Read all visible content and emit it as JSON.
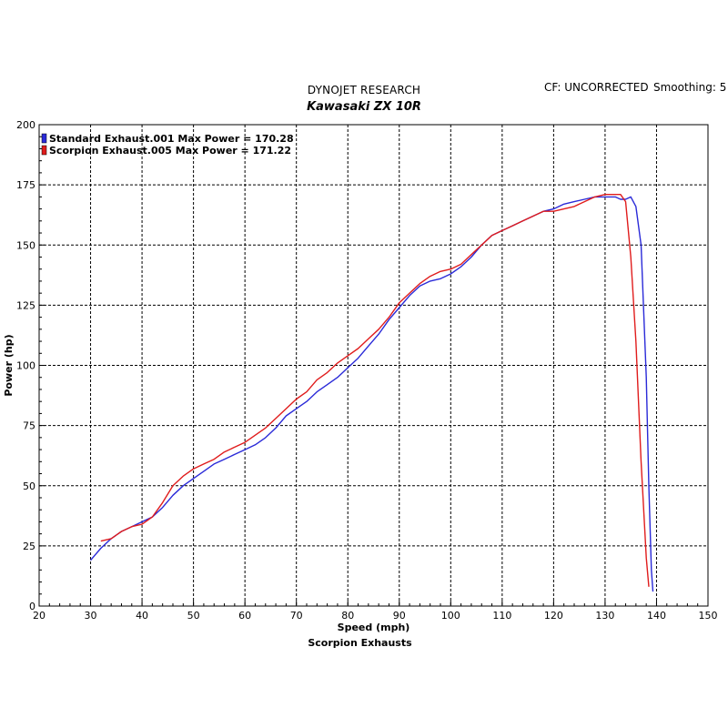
{
  "header": {
    "app_title": "DYNOJET RESEARCH",
    "chart_title": "Kawasaki ZX 10R",
    "correction": "CF: UNCORRECTED",
    "smoothing": "Smoothing: 5"
  },
  "footer": {
    "caption": "Scorpion Exhausts"
  },
  "colors": {
    "standard": "#2a2ad8",
    "scorpion": "#e01c1c",
    "grid": "#000000",
    "frame": "#000000"
  },
  "chart_data": {
    "type": "line",
    "title": "Kawasaki ZX 10R",
    "xlabel": "Speed (mph)",
    "ylabel": "Power (hp)",
    "xlim": [
      20,
      150
    ],
    "ylim": [
      0,
      200
    ],
    "x_ticks": [
      "20",
      "30",
      "40",
      "50",
      "60",
      "70",
      "80",
      "90",
      "100",
      "110",
      "120",
      "130",
      "140",
      "150"
    ],
    "y_ticks": [
      "0",
      "25",
      "50",
      "75",
      "100",
      "125",
      "150",
      "175",
      "200"
    ],
    "grid": true,
    "legend_position": "top-left",
    "legend": [
      "Standard Exhaust.001 Max Power = 170.28",
      "Scorpion Exhaust.005 Max Power = 171.22"
    ],
    "series": [
      {
        "name": "Standard Exhaust.001",
        "max_power": 170.28,
        "color": "#2a2ad8",
        "points": [
          [
            30,
            19
          ],
          [
            32,
            24
          ],
          [
            34,
            28
          ],
          [
            36,
            31
          ],
          [
            38,
            33
          ],
          [
            40,
            35
          ],
          [
            42,
            37
          ],
          [
            44,
            41
          ],
          [
            46,
            46
          ],
          [
            48,
            50
          ],
          [
            50,
            53
          ],
          [
            52,
            56
          ],
          [
            54,
            59
          ],
          [
            56,
            61
          ],
          [
            58,
            63
          ],
          [
            60,
            65
          ],
          [
            62,
            67
          ],
          [
            64,
            70
          ],
          [
            66,
            74
          ],
          [
            68,
            79
          ],
          [
            70,
            82
          ],
          [
            72,
            85
          ],
          [
            74,
            89
          ],
          [
            76,
            92
          ],
          [
            78,
            95
          ],
          [
            80,
            99
          ],
          [
            82,
            103
          ],
          [
            84,
            108
          ],
          [
            86,
            113
          ],
          [
            88,
            119
          ],
          [
            90,
            124
          ],
          [
            92,
            129
          ],
          [
            94,
            133
          ],
          [
            96,
            135
          ],
          [
            98,
            136
          ],
          [
            100,
            138
          ],
          [
            102,
            141
          ],
          [
            104,
            145
          ],
          [
            106,
            150
          ],
          [
            108,
            154
          ],
          [
            110,
            156
          ],
          [
            112,
            158
          ],
          [
            114,
            160
          ],
          [
            116,
            162
          ],
          [
            118,
            164
          ],
          [
            120,
            165
          ],
          [
            122,
            167
          ],
          [
            124,
            168
          ],
          [
            126,
            169
          ],
          [
            128,
            170
          ],
          [
            130,
            170
          ],
          [
            132,
            170
          ],
          [
            133,
            169
          ],
          [
            134,
            169
          ],
          [
            135,
            170
          ],
          [
            136,
            166
          ],
          [
            137,
            150
          ],
          [
            138,
            95
          ],
          [
            138.5,
            50
          ],
          [
            139,
            15
          ],
          [
            139.3,
            6
          ]
        ]
      },
      {
        "name": "Scorpion Exhaust.005",
        "max_power": 171.22,
        "color": "#e01c1c",
        "points": [
          [
            32,
            27
          ],
          [
            34,
            28
          ],
          [
            36,
            31
          ],
          [
            38,
            33
          ],
          [
            40,
            34
          ],
          [
            42,
            37
          ],
          [
            44,
            43
          ],
          [
            46,
            50
          ],
          [
            48,
            54
          ],
          [
            50,
            57
          ],
          [
            52,
            59
          ],
          [
            54,
            61
          ],
          [
            56,
            64
          ],
          [
            58,
            66
          ],
          [
            60,
            68
          ],
          [
            62,
            71
          ],
          [
            64,
            74
          ],
          [
            66,
            78
          ],
          [
            68,
            82
          ],
          [
            70,
            86
          ],
          [
            72,
            89
          ],
          [
            74,
            94
          ],
          [
            76,
            97
          ],
          [
            78,
            101
          ],
          [
            80,
            104
          ],
          [
            82,
            107
          ],
          [
            84,
            111
          ],
          [
            86,
            115
          ],
          [
            88,
            120
          ],
          [
            90,
            126
          ],
          [
            92,
            130
          ],
          [
            94,
            134
          ],
          [
            96,
            137
          ],
          [
            98,
            139
          ],
          [
            100,
            140
          ],
          [
            102,
            142
          ],
          [
            104,
            146
          ],
          [
            106,
            150
          ],
          [
            108,
            154
          ],
          [
            110,
            156
          ],
          [
            112,
            158
          ],
          [
            114,
            160
          ],
          [
            116,
            162
          ],
          [
            118,
            164
          ],
          [
            120,
            164
          ],
          [
            122,
            165
          ],
          [
            124,
            166
          ],
          [
            126,
            168
          ],
          [
            128,
            170
          ],
          [
            130,
            171
          ],
          [
            132,
            171
          ],
          [
            133,
            171
          ],
          [
            134,
            168
          ],
          [
            135,
            145
          ],
          [
            136,
            110
          ],
          [
            137,
            60
          ],
          [
            138,
            20
          ],
          [
            138.5,
            8
          ]
        ]
      }
    ]
  }
}
